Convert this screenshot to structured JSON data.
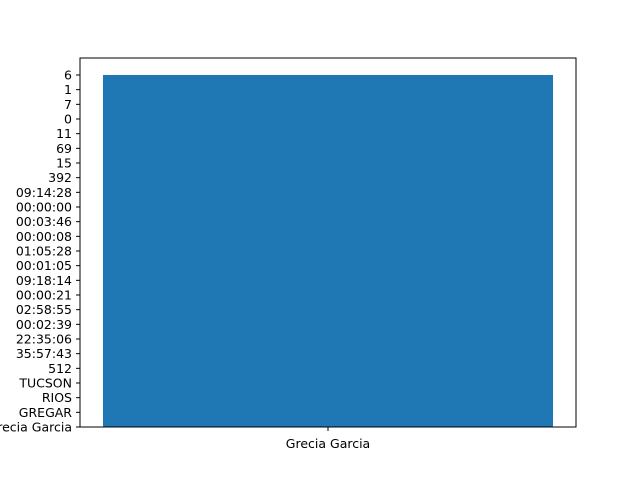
{
  "chart_data": {
    "type": "bar",
    "categories": [
      "Grecia Garcia"
    ],
    "values": [
      6
    ],
    "y_categories": [
      "Grecia Garcia",
      "GREGAR",
      "RIOS",
      "TUCSON",
      "512",
      "35:57:43",
      "22:35:06",
      "00:02:39",
      "02:58:55",
      "00:00:21",
      "09:18:14",
      "00:01:05",
      "01:05:28",
      "00:00:08",
      "00:03:46",
      "00:00:00",
      "09:14:28",
      "392",
      "15",
      "69",
      "11",
      "0",
      "7",
      "1",
      "6"
    ],
    "title": "",
    "xlabel": "",
    "ylabel": "",
    "grid": false,
    "colors": {
      "bar": "#1f77b4",
      "axes": "#000000",
      "background": "#ffffff"
    }
  }
}
